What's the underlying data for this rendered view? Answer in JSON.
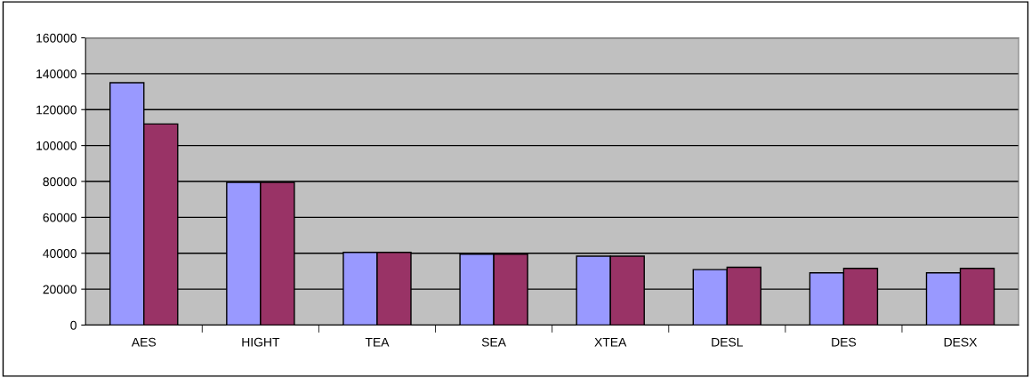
{
  "chart_data": {
    "type": "bar",
    "categories": [
      "AES",
      "HIGHT",
      "TEA",
      "SEA",
      "XTEA",
      "DESL",
      "DES",
      "DESX"
    ],
    "series": [
      {
        "color": "#9999ff",
        "values": [
          135000,
          79500,
          40500,
          39500,
          38400,
          30900,
          29100,
          29100
        ]
      },
      {
        "color": "#993366",
        "values": [
          112000,
          79500,
          40500,
          39500,
          38400,
          32200,
          31600,
          31600
        ]
      }
    ],
    "ylim": [
      0,
      160000
    ],
    "yticks": [
      0,
      20000,
      40000,
      60000,
      80000,
      100000,
      120000,
      140000,
      160000
    ],
    "grid": "y",
    "legend": false
  }
}
